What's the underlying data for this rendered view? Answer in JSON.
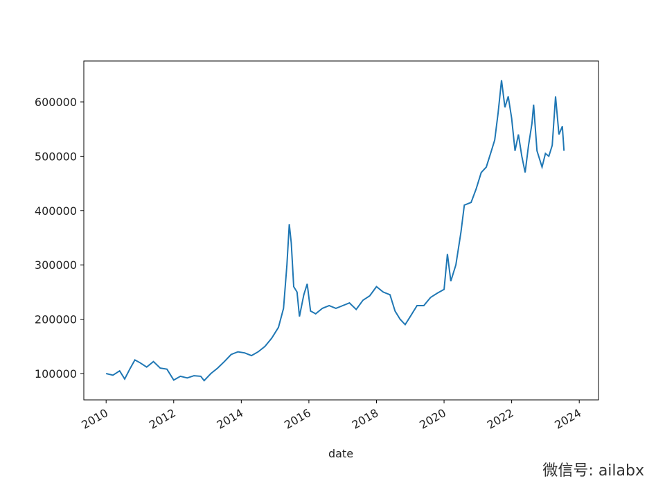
{
  "chart_data": {
    "type": "line",
    "xlabel": "date",
    "watermark": "微信号: ailabx",
    "color": "#1f77b4",
    "x": [
      2010.0,
      2010.2,
      2010.4,
      2010.55,
      2010.7,
      2010.85,
      2011.0,
      2011.2,
      2011.4,
      2011.6,
      2011.8,
      2012.0,
      2012.2,
      2012.4,
      2012.6,
      2012.8,
      2012.9,
      2013.1,
      2013.3,
      2013.5,
      2013.7,
      2013.9,
      2014.1,
      2014.3,
      2014.5,
      2014.7,
      2014.9,
      2015.1,
      2015.25,
      2015.35,
      2015.42,
      2015.48,
      2015.55,
      2015.65,
      2015.72,
      2015.85,
      2015.95,
      2016.05,
      2016.2,
      2016.4,
      2016.6,
      2016.8,
      2017.0,
      2017.2,
      2017.4,
      2017.6,
      2017.8,
      2018.0,
      2018.2,
      2018.4,
      2018.55,
      2018.7,
      2018.85,
      2019.0,
      2019.2,
      2019.4,
      2019.6,
      2019.8,
      2020.0,
      2020.1,
      2020.2,
      2020.35,
      2020.5,
      2020.6,
      2020.8,
      2020.95,
      2021.1,
      2021.25,
      2021.4,
      2021.5,
      2021.6,
      2021.7,
      2021.8,
      2021.9,
      2022.0,
      2022.1,
      2022.2,
      2022.3,
      2022.4,
      2022.5,
      2022.6,
      2022.65,
      2022.75,
      2022.9,
      2023.0,
      2023.1,
      2023.2,
      2023.3,
      2023.4,
      2023.5,
      2023.55
    ],
    "values": [
      100000,
      97000,
      105000,
      90000,
      108000,
      125000,
      120000,
      112000,
      122000,
      110000,
      108000,
      88000,
      95000,
      92000,
      96000,
      95000,
      87000,
      100000,
      110000,
      122000,
      135000,
      140000,
      138000,
      133000,
      140000,
      150000,
      165000,
      185000,
      220000,
      300000,
      375000,
      340000,
      260000,
      250000,
      205000,
      245000,
      265000,
      215000,
      210000,
      220000,
      225000,
      220000,
      225000,
      230000,
      218000,
      235000,
      243000,
      260000,
      250000,
      245000,
      215000,
      200000,
      190000,
      205000,
      225000,
      225000,
      240000,
      248000,
      255000,
      320000,
      270000,
      300000,
      360000,
      410000,
      415000,
      440000,
      470000,
      480000,
      510000,
      530000,
      580000,
      640000,
      590000,
      610000,
      570000,
      510000,
      540000,
      500000,
      470000,
      520000,
      560000,
      595000,
      510000,
      480000,
      505000,
      500000,
      520000,
      610000,
      540000,
      555000,
      510000
    ],
    "xlim": [
      2009.34,
      2024.57
    ],
    "xticks": [
      2010,
      2012,
      2014,
      2016,
      2018,
      2020,
      2022,
      2024
    ],
    "ylim": [
      51500,
      675300
    ],
    "yticks": [
      100000,
      200000,
      300000,
      400000,
      500000,
      600000
    ]
  }
}
